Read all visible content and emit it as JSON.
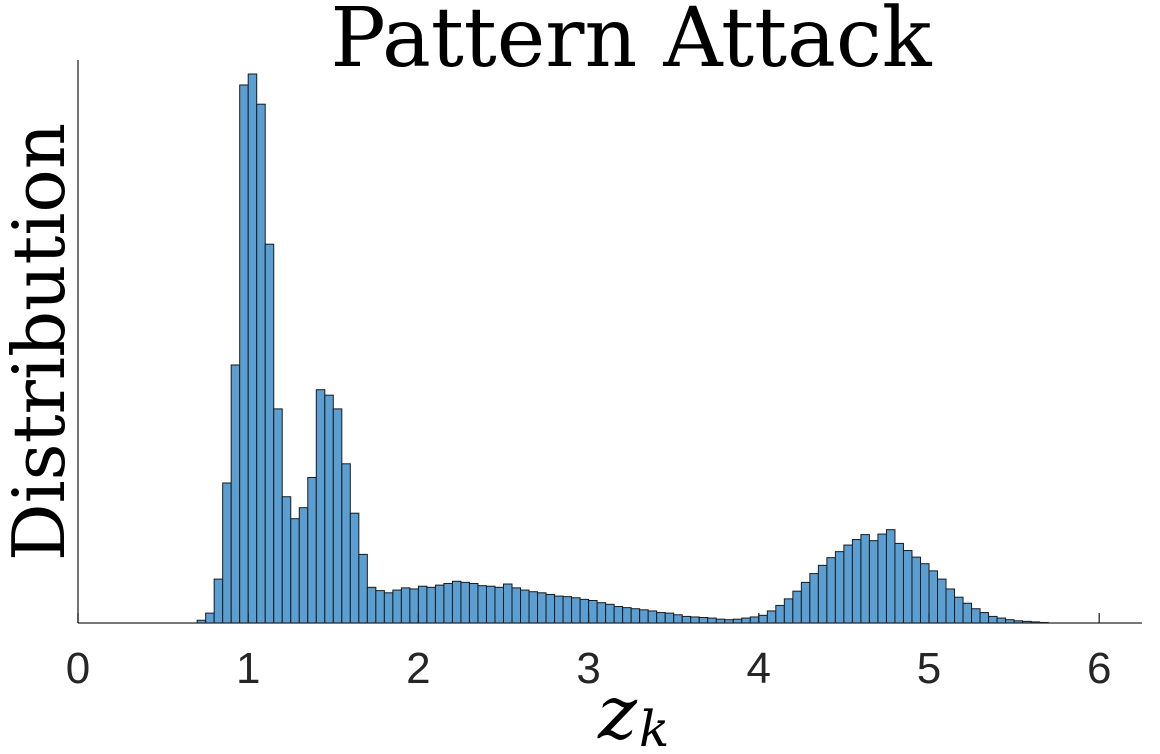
{
  "chart_data": {
    "type": "bar",
    "title": "Pattern Attack",
    "ylabel": "Distribution",
    "xlabel": "z",
    "xlabel_sub": "k",
    "xlim": [
      0,
      6.25
    ],
    "ylim": [
      0,
      1.08
    ],
    "x_ticks": [
      "0",
      "1",
      "2",
      "3",
      "4",
      "5",
      "6"
    ],
    "y_ticks_shown": false,
    "bin_width": 0.05,
    "bin_start": 0.7,
    "values": [
      0.005,
      0.018,
      0.08,
      0.255,
      0.47,
      0.98,
      1.0,
      0.945,
      0.69,
      0.39,
      0.23,
      0.19,
      0.21,
      0.265,
      0.425,
      0.415,
      0.39,
      0.29,
      0.2,
      0.125,
      0.065,
      0.059,
      0.055,
      0.06,
      0.064,
      0.062,
      0.067,
      0.065,
      0.069,
      0.072,
      0.076,
      0.074,
      0.072,
      0.068,
      0.067,
      0.065,
      0.071,
      0.064,
      0.06,
      0.057,
      0.055,
      0.052,
      0.049,
      0.048,
      0.046,
      0.043,
      0.041,
      0.037,
      0.034,
      0.03,
      0.028,
      0.026,
      0.024,
      0.022,
      0.019,
      0.018,
      0.015,
      0.012,
      0.011,
      0.01,
      0.009,
      0.007,
      0.006,
      0.007,
      0.009,
      0.011,
      0.014,
      0.022,
      0.032,
      0.044,
      0.058,
      0.074,
      0.09,
      0.105,
      0.119,
      0.13,
      0.142,
      0.152,
      0.161,
      0.15,
      0.162,
      0.17,
      0.145,
      0.132,
      0.12,
      0.108,
      0.095,
      0.08,
      0.062,
      0.047,
      0.036,
      0.026,
      0.019,
      0.012,
      0.009,
      0.006,
      0.004,
      0.003,
      0.002,
      0.001
    ]
  }
}
